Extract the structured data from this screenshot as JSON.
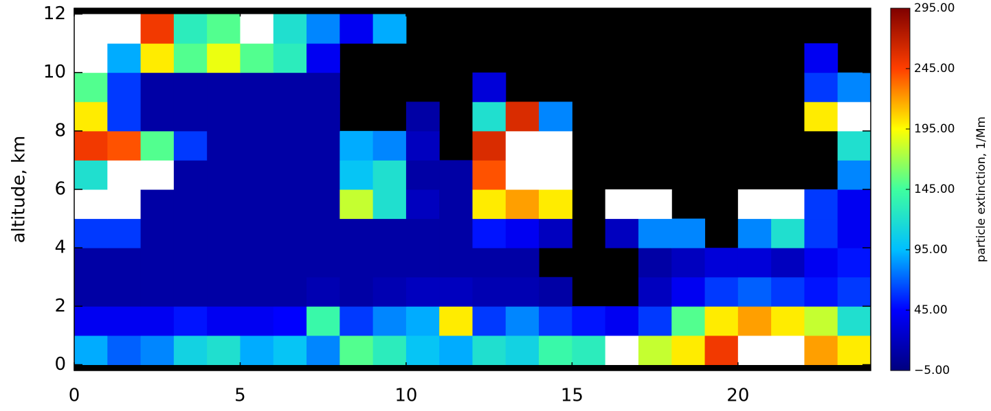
{
  "chart_data": {
    "type": "heatmap",
    "y_label": "altitude, km",
    "x": [
      0,
      1,
      2,
      3,
      4,
      5,
      6,
      7,
      8,
      9,
      10,
      11,
      12,
      13,
      14,
      15,
      16,
      17,
      18,
      19,
      20,
      21,
      22,
      23,
      24
    ],
    "y": [
      0,
      1,
      2,
      3,
      4,
      5,
      6,
      7,
      8,
      9,
      10,
      11,
      12
    ],
    "xlim": [
      0,
      24
    ],
    "ylim": [
      -0.2,
      12.2
    ],
    "xticks": [
      0,
      5,
      10,
      15,
      20
    ],
    "yticks": [
      0,
      2,
      4,
      6,
      8,
      10,
      12
    ],
    "values": [
      [
        90,
        70,
        80,
        110,
        120,
        90,
        100,
        80,
        150,
        130,
        100,
        90,
        120,
        110,
        140,
        130,
        310,
        180,
        200,
        250,
        310,
        300,
        220,
        200
      ],
      [
        40,
        40,
        40,
        50,
        40,
        40,
        45,
        140,
        60,
        80,
        90,
        200,
        60,
        80,
        60,
        50,
        40,
        60,
        150,
        200,
        220,
        200,
        180,
        120
      ],
      [
        10,
        10,
        10,
        10,
        10,
        10,
        10,
        15,
        10,
        15,
        20,
        20,
        15,
        15,
        10,
        null,
        null,
        20,
        40,
        60,
        70,
        60,
        50,
        60
      ],
      [
        10,
        10,
        10,
        10,
        10,
        10,
        10,
        10,
        10,
        10,
        10,
        10,
        10,
        10,
        null,
        null,
        null,
        10,
        20,
        30,
        30,
        20,
        40,
        50
      ],
      [
        60,
        60,
        10,
        10,
        10,
        10,
        10,
        10,
        10,
        10,
        10,
        10,
        50,
        40,
        20,
        null,
        20,
        80,
        80,
        null,
        80,
        120,
        60,
        40
      ],
      [
        300,
        300,
        10,
        10,
        10,
        10,
        10,
        10,
        180,
        120,
        20,
        10,
        200,
        220,
        200,
        null,
        300,
        300,
        null,
        null,
        300,
        310,
        60,
        40
      ],
      [
        120,
        300,
        300,
        10,
        10,
        10,
        10,
        10,
        100,
        120,
        10,
        10,
        240,
        310,
        300,
        null,
        null,
        null,
        null,
        null,
        null,
        null,
        null,
        80
      ],
      [
        250,
        240,
        150,
        60,
        10,
        10,
        10,
        10,
        90,
        80,
        20,
        null,
        260,
        310,
        300,
        null,
        null,
        null,
        null,
        null,
        null,
        null,
        null,
        120
      ],
      [
        200,
        60,
        10,
        10,
        10,
        10,
        10,
        10,
        null,
        null,
        10,
        null,
        120,
        260,
        80,
        null,
        null,
        null,
        null,
        null,
        null,
        null,
        200,
        310
      ],
      [
        150,
        60,
        10,
        10,
        10,
        10,
        10,
        10,
        null,
        null,
        null,
        null,
        30,
        null,
        null,
        null,
        null,
        null,
        null,
        null,
        null,
        null,
        60,
        80
      ],
      [
        300,
        90,
        200,
        150,
        190,
        150,
        130,
        40,
        null,
        null,
        null,
        null,
        null,
        null,
        null,
        null,
        null,
        null,
        null,
        null,
        null,
        null,
        40,
        null
      ],
      [
        310,
        310,
        250,
        130,
        150,
        310,
        120,
        80,
        40,
        90,
        null,
        null,
        null,
        null,
        null,
        null,
        null,
        null,
        null,
        null,
        null,
        null,
        null,
        null
      ]
    ],
    "colorbar": {
      "label": "particle extinction, 1/Mm",
      "lim": [
        -5,
        295
      ],
      "ticks": [
        {
          "value": -5,
          "label": "−5.00"
        },
        {
          "value": 45,
          "label": "45.00"
        },
        {
          "value": 95,
          "label": "95.00"
        },
        {
          "value": 145,
          "label": "145.00"
        },
        {
          "value": 195,
          "label": "195.00"
        },
        {
          "value": 245,
          "label": "245.00"
        },
        {
          "value": 295,
          "label": "295.00"
        }
      ],
      "colors": [
        "#00007f",
        "#0000ff",
        "#00bfff",
        "#3fff9f",
        "#ffff00",
        "#ff3f00",
        "#7f0000"
      ],
      "over_color": "#ffffff",
      "missing_color": "#000000"
    }
  }
}
